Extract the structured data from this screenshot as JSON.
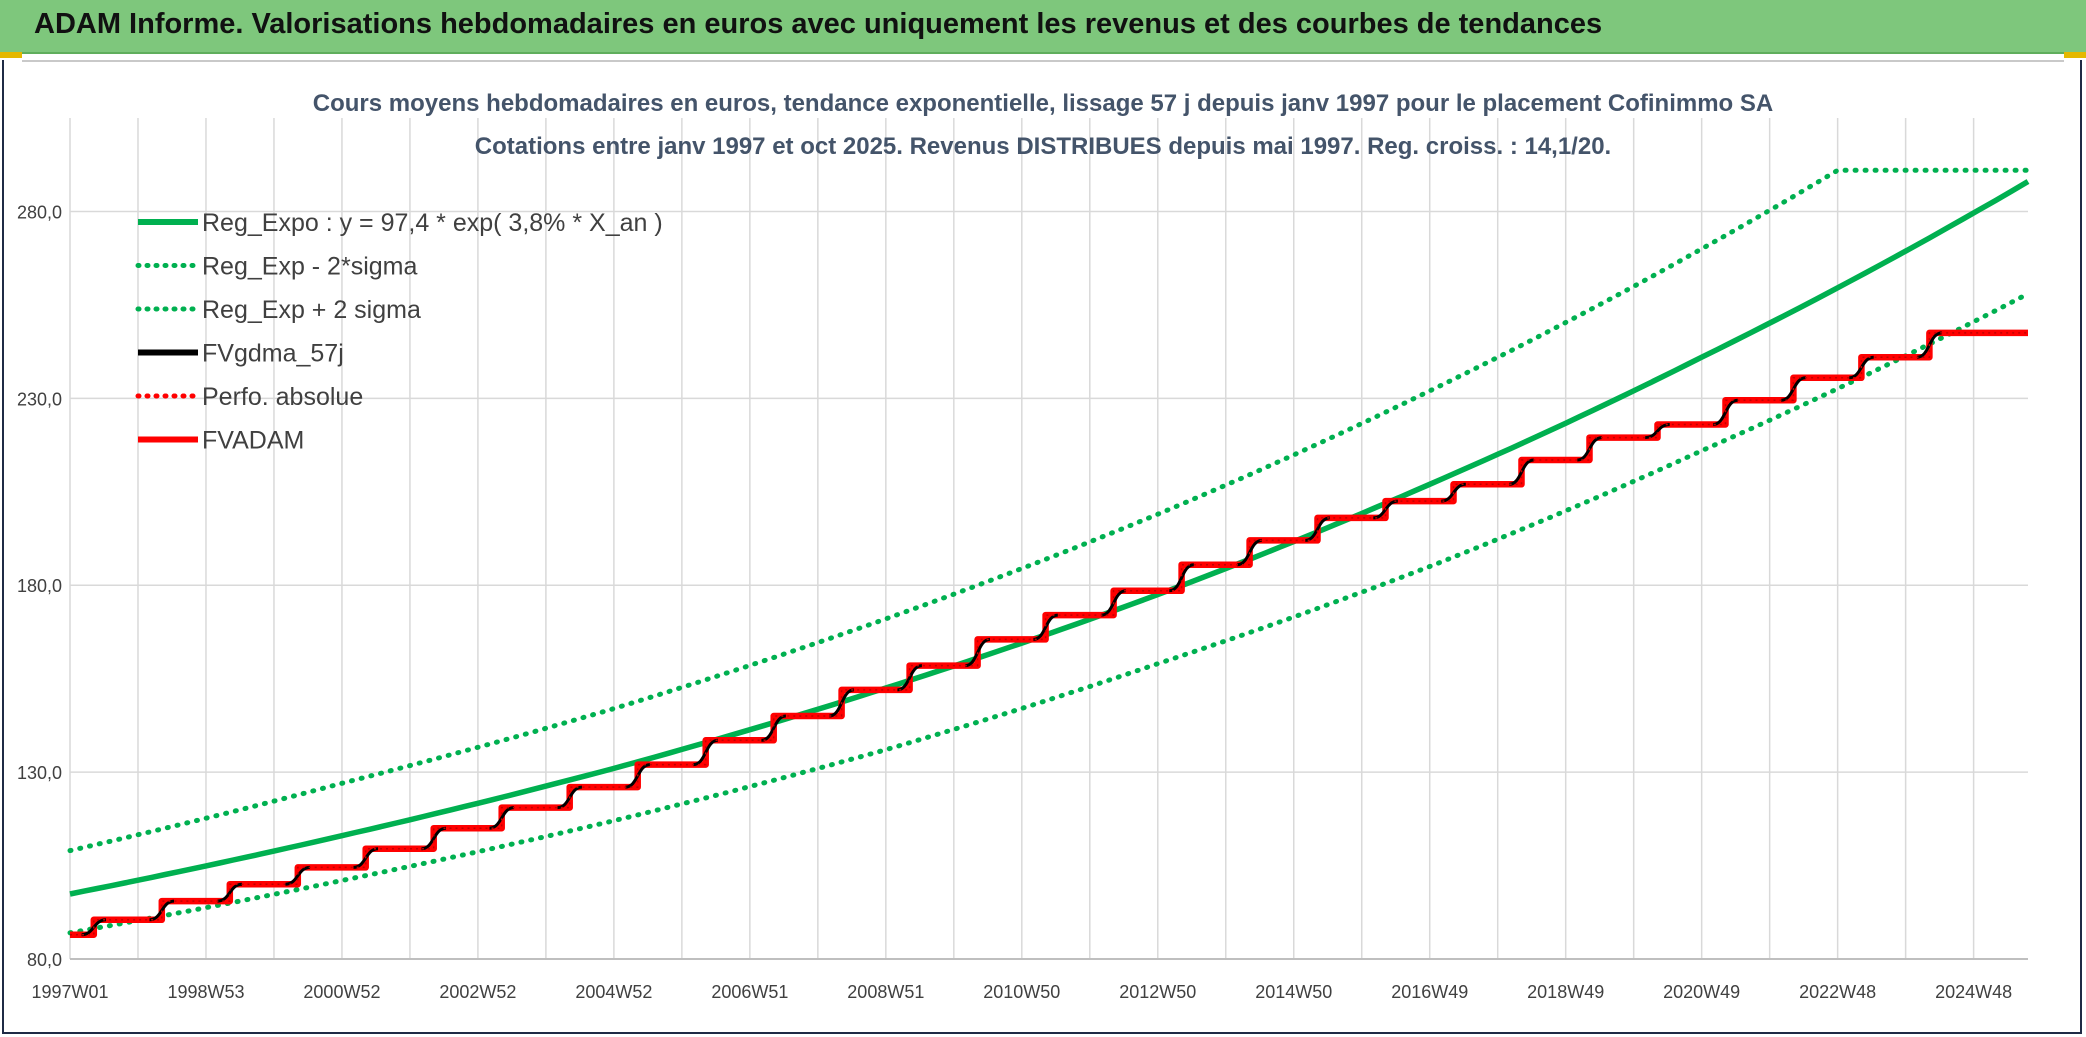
{
  "header": {
    "title": "ADAM Informe. Valorisations hebdomadaires en euros avec uniquement les revenus et des courbes de tendances"
  },
  "colors": {
    "header_bg": "#7ec77c",
    "reg_expo": "#00b050",
    "fvgdma": "#000000",
    "fvadam": "#ff0000"
  },
  "chart_data": {
    "type": "line",
    "title": [
      "Cours moyens hebdomadaires en euros, tendance exponentielle, lissage 57 j depuis janv 1997 pour le placement Cofinimmo SA",
      "Cotations entre janv 1997 et oct 2025. Revenus DISTRIBUES depuis mai 1997. Reg. croiss. : 14,1/20."
    ],
    "xlabel": "",
    "ylabel": "",
    "x_ticks": [
      "1997W01",
      "1998W53",
      "2000W52",
      "2002W52",
      "2004W52",
      "2006W51",
      "2008W51",
      "2010W50",
      "2012W50",
      "2014W50",
      "2016W49",
      "2018W49",
      "2020W49",
      "2022W48",
      "2024W48"
    ],
    "y_ticks": [
      "80,0",
      "130,0",
      "180,0",
      "230,0",
      "280,0"
    ],
    "ylim": [
      80,
      305
    ],
    "xlim": [
      1997.0,
      2025.8
    ],
    "grid": true,
    "legend_position": "top-left",
    "legend": [
      {
        "label": "Reg_Expo : y = 97,4 * exp( 3,8% *  X_an )",
        "color": "#00b050",
        "style": "solid"
      },
      {
        "label": "Reg_Exp - 2*sigma",
        "color": "#00b050",
        "style": "dotted"
      },
      {
        "label": "Reg_Exp + 2 sigma",
        "color": "#00b050",
        "style": "dotted"
      },
      {
        "label": "FVgdma_57j",
        "color": "#000000",
        "style": "solid"
      },
      {
        "label": "Perfo. absolue",
        "color": "#ff0000",
        "style": "dotted"
      },
      {
        "label": "FVADAM",
        "color": "#ff0000",
        "style": "solid"
      }
    ],
    "series": [
      {
        "name": "Reg_Expo : y = 97,4 * exp( 3,8% *  X_an )",
        "x": [
          1997.0,
          2001.0,
          2005.0,
          2009.0,
          2013.0,
          2017.0,
          2021.0,
          2025.8
        ],
        "values": [
          97.4,
          113.0,
          131.0,
          152.5,
          177.5,
          207.0,
          241.0,
          288.0
        ]
      },
      {
        "name": "Reg_Exp - 2*sigma",
        "x": [
          1997.0,
          2001.0,
          2005.0,
          2009.0,
          2013.0,
          2017.0,
          2021.0,
          2025.8
        ],
        "values": [
          87.0,
          101.0,
          117.0,
          136.0,
          159.0,
          185.0,
          216.0,
          258.0
        ]
      },
      {
        "name": "Reg_Exp + 2 sigma",
        "x": [
          1997.0,
          2001.0,
          2005.0,
          2009.0,
          2013.0,
          2017.0,
          2021.0,
          2023.0,
          2025.8
        ],
        "values": [
          109.0,
          127.0,
          147.0,
          171.0,
          199.0,
          232.0,
          270.0,
          291.0,
          291.0
        ]
      },
      {
        "name": "FVADAM",
        "x": [
          1997.0,
          1997.35,
          1997.35,
          1998.35,
          1998.35,
          1999.35,
          1999.35,
          2000.35,
          2000.35,
          2001.35,
          2001.35,
          2002.35,
          2002.35,
          2003.35,
          2003.35,
          2004.35,
          2004.35,
          2005.35,
          2005.35,
          2006.35,
          2006.35,
          2007.35,
          2007.35,
          2008.35,
          2008.35,
          2009.35,
          2009.35,
          2010.35,
          2010.35,
          2011.35,
          2011.35,
          2012.35,
          2012.35,
          2013.35,
          2013.35,
          2014.35,
          2014.35,
          2015.35,
          2015.35,
          2016.35,
          2016.35,
          2017.35,
          2017.35,
          2018.35,
          2018.35,
          2019.35,
          2019.35,
          2020.35,
          2020.35,
          2021.35,
          2021.35,
          2022.35,
          2022.35,
          2023.35,
          2023.35,
          2024.35,
          2024.35,
          2025.8
        ],
        "values": [
          86.5,
          86.5,
          90.5,
          90.5,
          95.5,
          95.5,
          100.0,
          100.0,
          104.5,
          104.5,
          109.5,
          109.5,
          115.0,
          115.0,
          120.5,
          120.5,
          126.0,
          126.0,
          132.0,
          132.0,
          138.5,
          138.5,
          145.0,
          145.0,
          152.0,
          152.0,
          158.5,
          158.5,
          165.5,
          165.5,
          172.0,
          172.0,
          178.5,
          178.5,
          185.5,
          185.5,
          192.0,
          192.0,
          198.0,
          198.0,
          202.5,
          202.5,
          207.0,
          207.0,
          213.5,
          213.5,
          219.5,
          219.5,
          223.0,
          223.0,
          229.5,
          229.5,
          235.5,
          235.5,
          241.0,
          241.0,
          247.5,
          247.5
        ]
      }
    ]
  }
}
